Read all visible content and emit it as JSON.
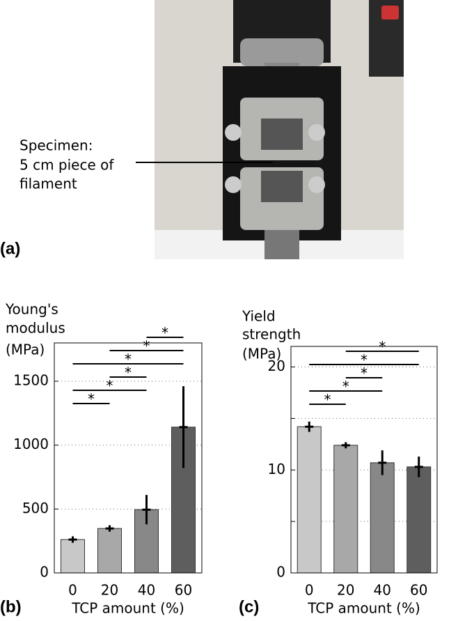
{
  "photo": {
    "panel_label": "(a)",
    "annotation": [
      "Specimen:",
      "5 cm piece of",
      "filament"
    ]
  },
  "chart_data": [
    {
      "type": "bar",
      "panel_label": "(b)",
      "ylabel": [
        "Young's",
        "modulus",
        "(MPa)"
      ],
      "xlabel": "TCP amount (%)",
      "categories": [
        "0",
        "20",
        "40",
        "60"
      ],
      "values": [
        261,
        348,
        495,
        1141
      ],
      "errors": [
        25,
        25,
        115,
        320
      ],
      "colors": [
        "#c8c8c8",
        "#a8a8a8",
        "#888888",
        "#5e5e5e"
      ],
      "ylim": [
        0,
        1800
      ],
      "yticks": [
        0,
        500,
        1000,
        1500
      ],
      "grid": true,
      "significance": [
        {
          "from": 0,
          "to": 1,
          "label": "*"
        },
        {
          "from": 0,
          "to": 2,
          "label": "*"
        },
        {
          "from": 1,
          "to": 2,
          "label": "*"
        },
        {
          "from": 0,
          "to": 3,
          "label": "*"
        },
        {
          "from": 1,
          "to": 3,
          "label": "*"
        },
        {
          "from": 2,
          "to": 3,
          "label": "*"
        }
      ]
    },
    {
      "type": "bar",
      "panel_label": "(c)",
      "ylabel": [
        "Yield",
        "strength",
        "(MPa)"
      ],
      "xlabel": "TCP amount (%)",
      "categories": [
        "0",
        "20",
        "40",
        "60"
      ],
      "values": [
        14.2,
        12.4,
        10.7,
        10.3
      ],
      "errors": [
        0.5,
        0.3,
        1.2,
        1.0
      ],
      "colors": [
        "#c8c8c8",
        "#a8a8a8",
        "#888888",
        "#5e5e5e"
      ],
      "ylim": [
        0,
        22
      ],
      "yticks": [
        0,
        10,
        20
      ],
      "minor_yticks": [
        5,
        15
      ],
      "grid": true,
      "significance": [
        {
          "from": 0,
          "to": 1,
          "label": "*"
        },
        {
          "from": 0,
          "to": 2,
          "label": "*"
        },
        {
          "from": 1,
          "to": 2,
          "label": "*"
        },
        {
          "from": 0,
          "to": 3,
          "label": "*"
        },
        {
          "from": 1,
          "to": 3,
          "label": "*"
        }
      ]
    }
  ]
}
